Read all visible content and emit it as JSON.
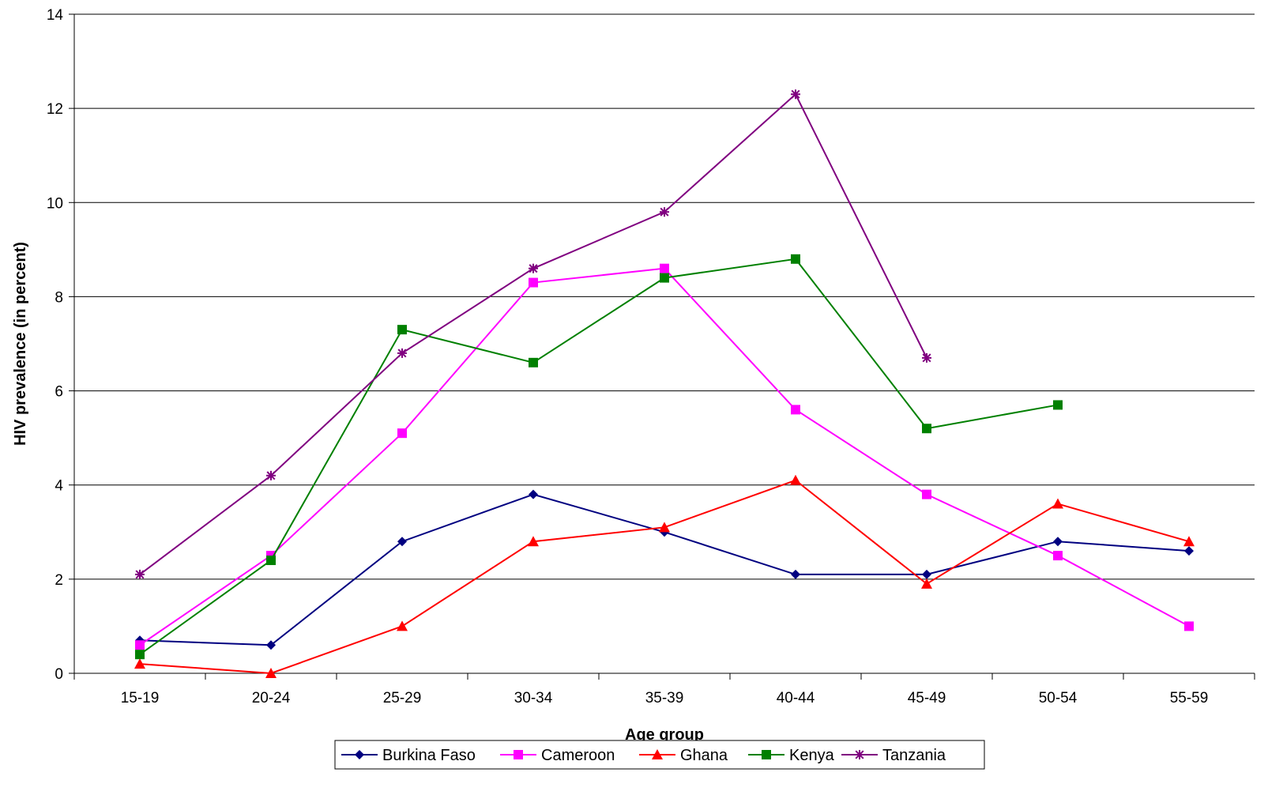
{
  "chart_data": {
    "type": "line",
    "title": "",
    "xlabel": "Age group",
    "ylabel": "HIV prevalence (in percent)",
    "categories": [
      "15-19",
      "20-24",
      "25-29",
      "30-34",
      "35-39",
      "40-44",
      "45-49",
      "50-54",
      "55-59"
    ],
    "ylim": [
      0,
      14
    ],
    "yticks": [
      0,
      2,
      4,
      6,
      8,
      10,
      12,
      14
    ],
    "grid": "horizontal",
    "legend_position": "bottom",
    "series": [
      {
        "name": "Burkina Faso",
        "color": "#000080",
        "marker": "diamond",
        "values": [
          0.7,
          0.6,
          2.8,
          3.8,
          3.0,
          2.1,
          2.1,
          2.8,
          2.6
        ]
      },
      {
        "name": "Cameroon",
        "color": "#FF00FF",
        "marker": "square",
        "values": [
          0.6,
          2.5,
          5.1,
          8.3,
          8.6,
          5.6,
          3.8,
          2.5,
          1.0
        ]
      },
      {
        "name": "Ghana",
        "color": "#FF0000",
        "marker": "triangle",
        "values": [
          0.2,
          0.0,
          1.0,
          2.8,
          3.1,
          4.1,
          1.9,
          3.6,
          2.8
        ]
      },
      {
        "name": "Kenya",
        "color": "#008000",
        "marker": "square",
        "values": [
          0.4,
          2.4,
          7.3,
          6.6,
          8.4,
          8.8,
          5.2,
          5.7,
          null
        ]
      },
      {
        "name": "Tanzania",
        "color": "#800080",
        "marker": "star",
        "values": [
          2.1,
          4.2,
          6.8,
          8.6,
          9.8,
          12.3,
          6.7,
          null,
          null
        ]
      }
    ]
  }
}
